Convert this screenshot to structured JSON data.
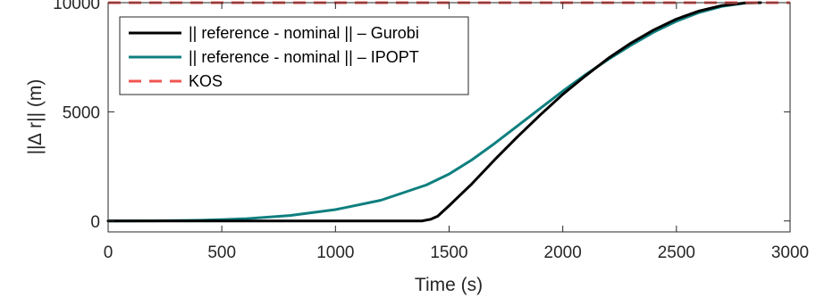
{
  "chart_data": {
    "type": "line",
    "title": "",
    "xlabel": "Time (s)",
    "ylabel": "||∆ r|| (m)",
    "xlim": [
      0,
      3000
    ],
    "ylim": [
      -500,
      10000
    ],
    "x_ticks": [
      "0",
      "500",
      "1000",
      "1500",
      "2000",
      "2500",
      "3000"
    ],
    "y_ticks": [
      "0",
      "5000",
      "10000"
    ],
    "grid": false,
    "legend_position": "top-left",
    "series": [
      {
        "name": "|| reference - nominal || – Gurobi",
        "color": "#000000",
        "dash": "solid",
        "x": [
          0,
          500,
          1000,
          1380,
          1420,
          1450,
          1500,
          1600,
          1700,
          1800,
          1900,
          2000,
          2100,
          2200,
          2300,
          2400,
          2500,
          2600,
          2700,
          2800,
          2870
        ],
        "y": [
          0,
          0,
          0,
          0,
          80,
          220,
          700,
          1700,
          2800,
          3850,
          4850,
          5800,
          6650,
          7450,
          8150,
          8750,
          9250,
          9620,
          9870,
          9990,
          10000
        ]
      },
      {
        "name": "|| reference - nominal || – IPOPT",
        "color": "#0f7f7f",
        "dash": "solid",
        "x": [
          0,
          200,
          400,
          600,
          800,
          1000,
          1200,
          1400,
          1500,
          1600,
          1700,
          1800,
          1900,
          2000,
          2100,
          2200,
          2300,
          2400,
          2500,
          2600,
          2700,
          2800,
          2870
        ],
        "y": [
          0,
          5,
          30,
          100,
          250,
          520,
          950,
          1650,
          2150,
          2800,
          3550,
          4350,
          5150,
          5950,
          6700,
          7400,
          8050,
          8650,
          9150,
          9550,
          9830,
          9980,
          10000
        ]
      },
      {
        "name": "KOS",
        "color": "#f25450",
        "dash": "dashed",
        "x": [
          0,
          3000
        ],
        "y": [
          10000,
          10000
        ]
      }
    ]
  }
}
